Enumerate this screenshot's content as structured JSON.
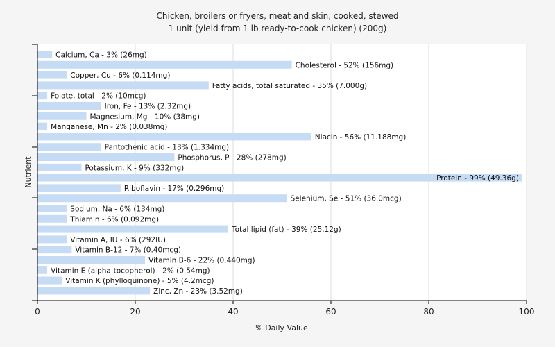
{
  "chart_data": {
    "type": "bar",
    "orientation": "horizontal",
    "title": "Chicken, broilers or fryers, meat and skin, cooked, stewed",
    "subtitle": "1 unit (yield from 1 lb ready-to-cook chicken) (200g)",
    "xlabel": "% Daily Value",
    "ylabel": "Nutrient",
    "xlim": [
      0,
      100
    ],
    "xticks": [
      0,
      20,
      40,
      60,
      80,
      100
    ],
    "grid": "vertical",
    "bar_color": "#c6dcf5",
    "categories": [
      "Calcium, Ca",
      "Cholesterol",
      "Copper, Cu",
      "Fatty acids, total saturated",
      "Folate, total",
      "Iron, Fe",
      "Magnesium, Mg",
      "Manganese, Mn",
      "Niacin",
      "Pantothenic acid",
      "Phosphorus, P",
      "Potassium, K",
      "Protein",
      "Riboflavin",
      "Selenium, Se",
      "Sodium, Na",
      "Thiamin",
      "Total lipid (fat)",
      "Vitamin A, IU",
      "Vitamin B-12",
      "Vitamin B-6",
      "Vitamin E (alpha-tocopherol)",
      "Vitamin K (phylloquinone)",
      "Zinc, Zn"
    ],
    "values": [
      3,
      52,
      6,
      35,
      2,
      13,
      10,
      2,
      56,
      13,
      28,
      9,
      99,
      17,
      51,
      6,
      6,
      39,
      6,
      7,
      22,
      2,
      5,
      23
    ],
    "labels": [
      "Calcium, Ca - 3% (26mg)",
      "Cholesterol - 52% (156mg)",
      "Copper, Cu - 6% (0.114mg)",
      "Fatty acids, total saturated - 35% (7.000g)",
      "Folate, total - 2% (10mcg)",
      "Iron, Fe - 13% (2.32mg)",
      "Magnesium, Mg - 10% (38mg)",
      "Manganese, Mn - 2% (0.038mg)",
      "Niacin - 56% (11.188mg)",
      "Pantothenic acid - 13% (1.334mg)",
      "Phosphorus, P - 28% (278mg)",
      "Potassium, K - 9% (332mg)",
      "Protein - 99% (49.36g)",
      "Riboflavin - 17% (0.296mg)",
      "Selenium, Se - 51% (36.0mcg)",
      "Sodium, Na - 6% (134mg)",
      "Thiamin - 6% (0.092mg)",
      "Total lipid (fat) - 39% (25.12g)",
      "Vitamin A, IU - 6% (292IU)",
      "Vitamin B-12 - 7% (0.40mcg)",
      "Vitamin B-6 - 22% (0.440mg)",
      "Vitamin E (alpha-tocopherol) - 2% (0.54mg)",
      "Vitamin K (phylloquinone) - 5% (4.2mcg)",
      "Zinc, Zn - 23% (3.52mg)"
    ]
  }
}
